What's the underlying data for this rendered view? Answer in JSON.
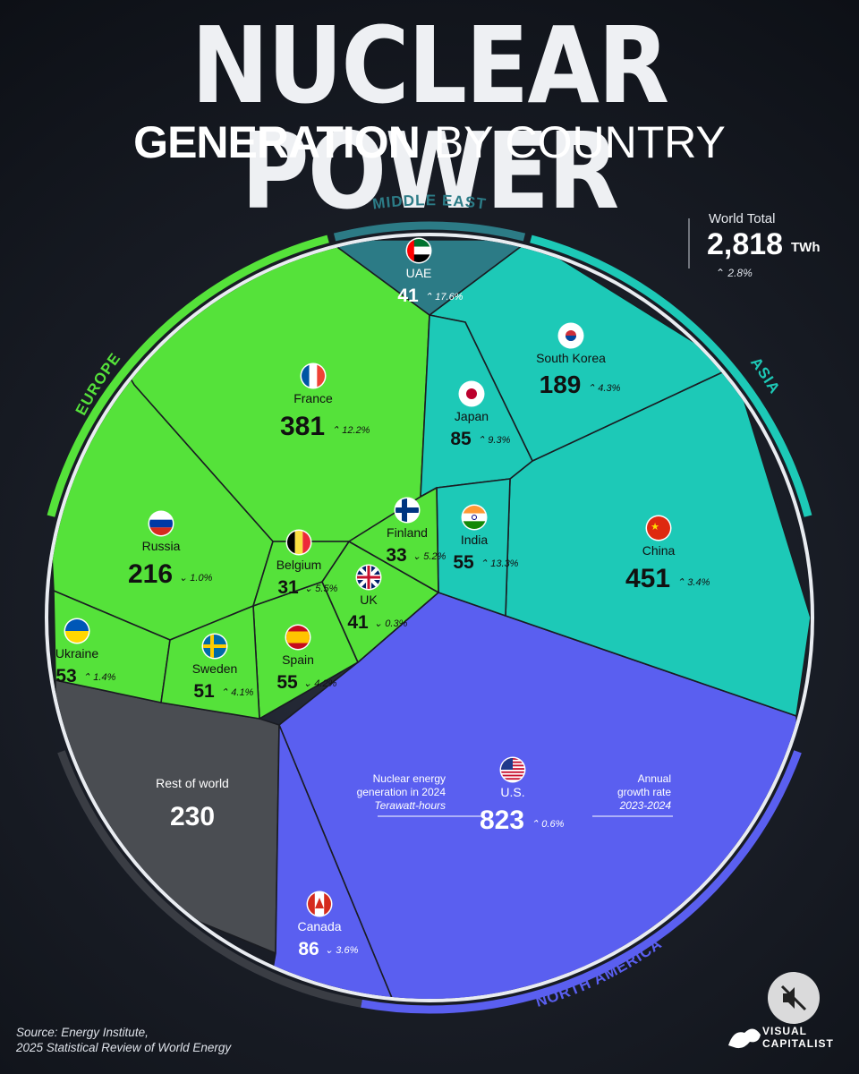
{
  "title": "NUCLEAR POWER",
  "subtitle": {
    "bold": "GENERATION",
    "light": "BY COUNTRY"
  },
  "world_total": {
    "label": "World Total",
    "value": "2,818",
    "unit": "TWh",
    "growth": "2.8%",
    "growth_dir": "up"
  },
  "legend": {
    "left_lines": [
      "Nuclear energy",
      "generation in 2024",
      "Terawatt-hours"
    ],
    "right_lines": [
      "Annual",
      "growth rate",
      "2023-2024"
    ]
  },
  "source_lines": [
    "Source: Energy Institute,",
    "2025 Statistical Review of World Energy"
  ],
  "brand": [
    "VISUAL",
    "CAPITALIST"
  ],
  "colors": {
    "europe": "#55e23a",
    "asia": "#1dc9b7",
    "north_america": "#5a5ff0",
    "middle_east": "#2c7b86",
    "rest": "#4a4d52"
  },
  "chart_data": {
    "type": "voronoi-treemap",
    "unit": "TWh",
    "regions": [
      "MIDDLE EAST",
      "ASIA",
      "NORTH AMERICA",
      "EUROPE"
    ],
    "items": [
      {
        "name": "U.S.",
        "region": "north_america",
        "value": 823,
        "growth": "0.6%",
        "dir": "up",
        "flag": "us-flag-icon"
      },
      {
        "name": "China",
        "region": "asia",
        "value": 451,
        "growth": "3.4%",
        "dir": "up",
        "flag": "china-flag-icon"
      },
      {
        "name": "France",
        "region": "europe",
        "value": 381,
        "growth": "12.2%",
        "dir": "up",
        "flag": "france-flag-icon"
      },
      {
        "name": "Rest of world",
        "region": "rest",
        "value": 230,
        "growth": "",
        "dir": "",
        "flag": ""
      },
      {
        "name": "Russia",
        "region": "europe",
        "value": 216,
        "growth": "1.0%",
        "dir": "down",
        "flag": "russia-flag-icon"
      },
      {
        "name": "South Korea",
        "region": "asia",
        "value": 189,
        "growth": "4.3%",
        "dir": "up",
        "flag": "south-korea-flag-icon"
      },
      {
        "name": "Canada",
        "region": "north_america",
        "value": 86,
        "growth": "3.6%",
        "dir": "down",
        "flag": "canada-flag-icon"
      },
      {
        "name": "Japan",
        "region": "asia",
        "value": 85,
        "growth": "9.3%",
        "dir": "up",
        "flag": "japan-flag-icon"
      },
      {
        "name": "India",
        "region": "asia",
        "value": 55,
        "growth": "13.3%",
        "dir": "up",
        "flag": "india-flag-icon"
      },
      {
        "name": "Spain",
        "region": "europe",
        "value": 55,
        "growth": "4.2%",
        "dir": "down",
        "flag": "spain-flag-icon"
      },
      {
        "name": "Ukraine",
        "region": "europe",
        "value": 53,
        "growth": "1.4%",
        "dir": "up",
        "flag": "ukraine-flag-icon"
      },
      {
        "name": "Sweden",
        "region": "europe",
        "value": 51,
        "growth": "4.1%",
        "dir": "up",
        "flag": "sweden-flag-icon"
      },
      {
        "name": "UAE",
        "region": "middle_east",
        "value": 41,
        "growth": "17.6%",
        "dir": "up",
        "flag": "uae-flag-icon"
      },
      {
        "name": "UK",
        "region": "europe",
        "value": 41,
        "growth": "0.3%",
        "dir": "down",
        "flag": "uk-flag-icon"
      },
      {
        "name": "Finland",
        "region": "europe",
        "value": 33,
        "growth": "5.2%",
        "dir": "down",
        "flag": "finland-flag-icon"
      },
      {
        "name": "Belgium",
        "region": "europe",
        "value": 31,
        "growth": "5.5%",
        "dir": "down",
        "flag": "belgium-flag-icon"
      }
    ]
  }
}
